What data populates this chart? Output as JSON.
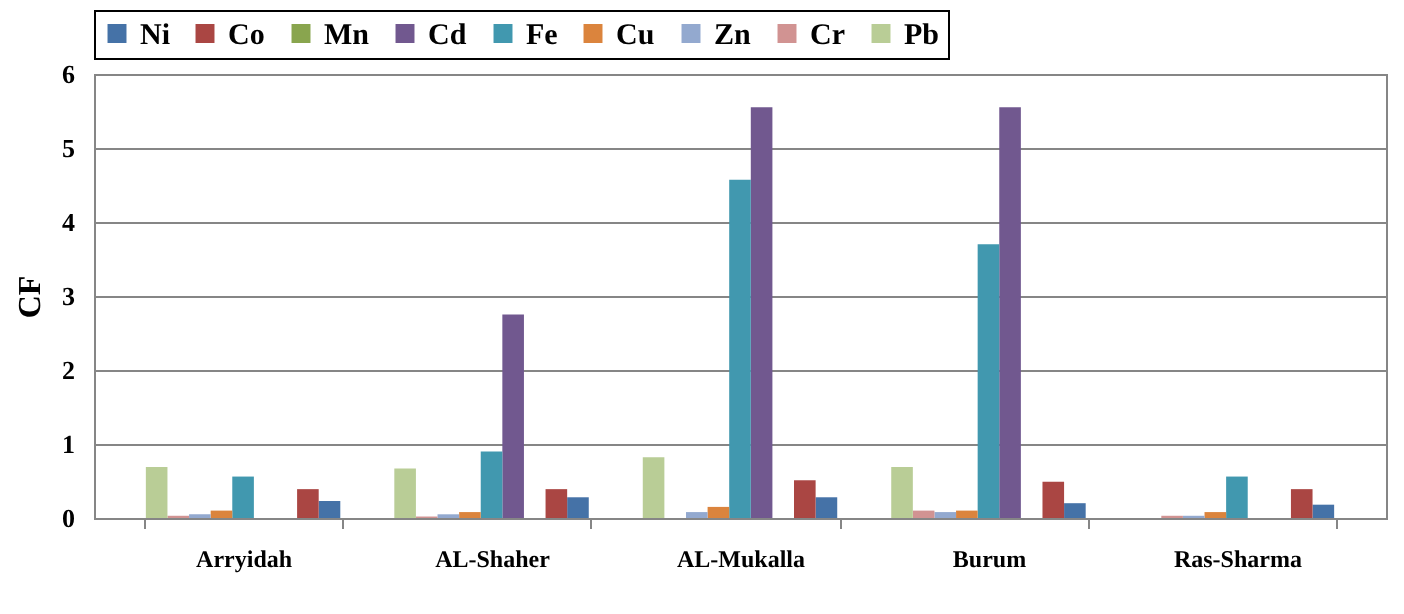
{
  "chart_data": {
    "type": "bar",
    "ylabel": "CF",
    "categories": [
      "Arryidah",
      "AL-Shaher",
      "AL-Mukalla",
      "Burum",
      "Ras-Sharma"
    ],
    "series": [
      {
        "name": "Ni",
        "color": "#4572a7",
        "values": [
          0.23,
          0.28,
          0.28,
          0.2,
          0.18
        ]
      },
      {
        "name": "Co",
        "color": "#aa4643",
        "values": [
          0.39,
          0.39,
          0.51,
          0.49,
          0.39
        ]
      },
      {
        "name": "Mn",
        "color": "#89a54e",
        "values": [
          0,
          0,
          0,
          0,
          0
        ]
      },
      {
        "name": "Cd",
        "color": "#71588f",
        "values": [
          0,
          2.75,
          5.55,
          5.55,
          0
        ]
      },
      {
        "name": "Fe",
        "color": "#4198af",
        "values": [
          0.56,
          0.9,
          4.57,
          3.7,
          0.56
        ]
      },
      {
        "name": "Cu",
        "color": "#db843d",
        "values": [
          0.1,
          0.08,
          0.15,
          0.1,
          0.08
        ]
      },
      {
        "name": "Zn",
        "color": "#93a9cf",
        "values": [
          0.05,
          0.05,
          0.08,
          0.08,
          0.03
        ]
      },
      {
        "name": "Cr",
        "color": "#d19392",
        "values": [
          0.03,
          0.02,
          0,
          0.1,
          0.03
        ]
      },
      {
        "name": "Pb",
        "color": "#b9cd96",
        "values": [
          0.69,
          0.67,
          0.82,
          0.69,
          0
        ]
      }
    ],
    "ylim": [
      0,
      6
    ],
    "yticks": [
      0,
      1,
      2,
      3,
      4,
      5,
      6
    ],
    "grid": "y",
    "legend": "top"
  }
}
